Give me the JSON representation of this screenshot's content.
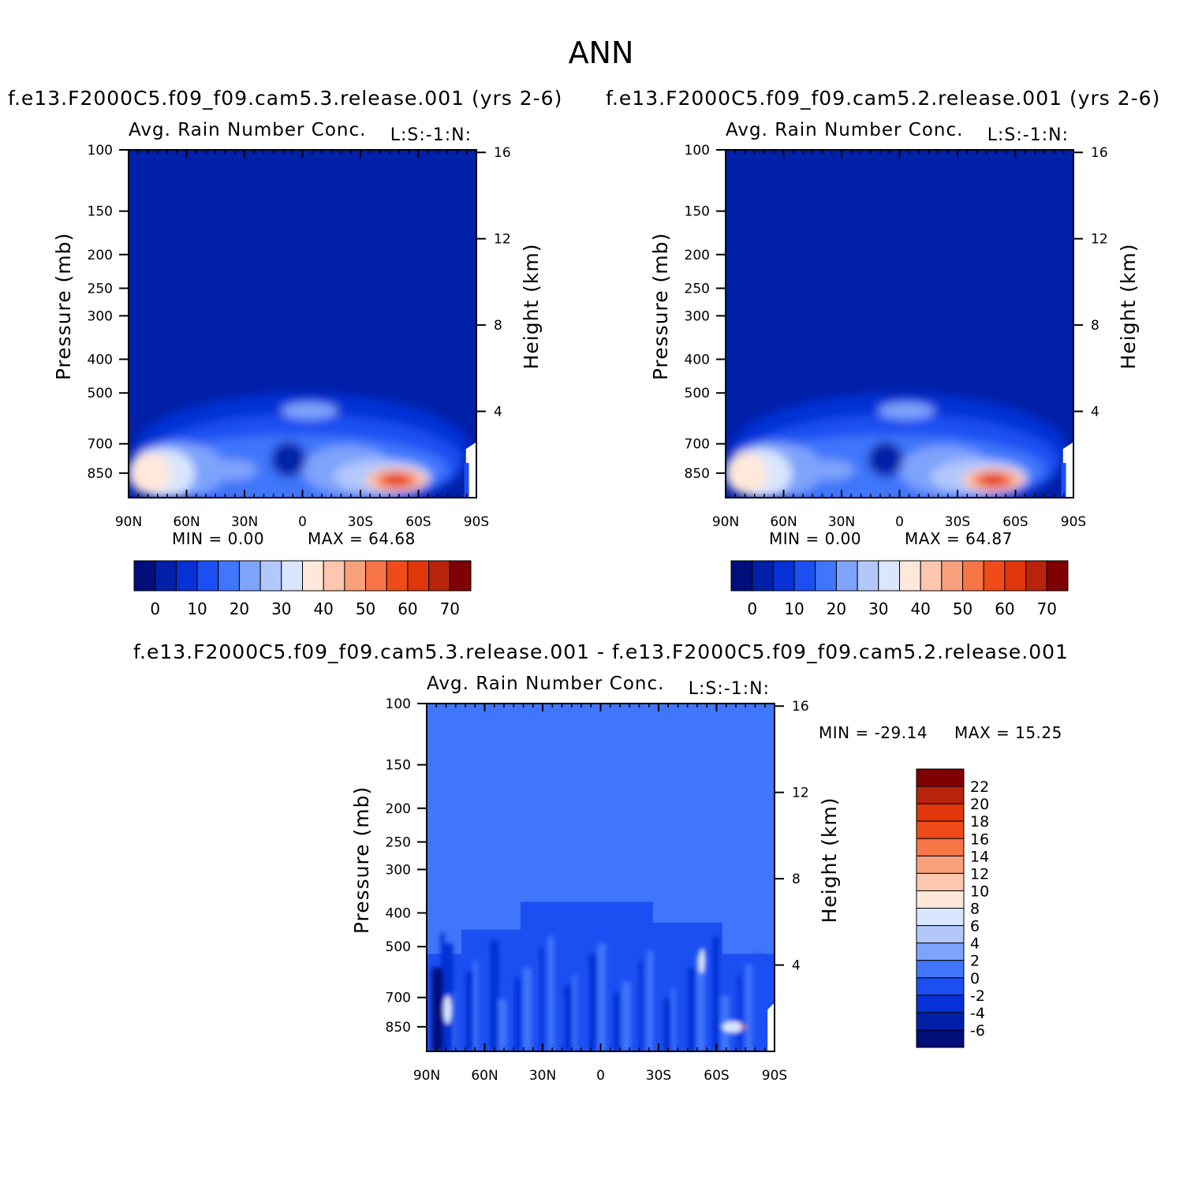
{
  "title": "ANN",
  "chart_data": [
    {
      "type": "heatmap",
      "case": "f.e13.F2000C5.f09_f09.cam5.3.release.001  (yrs 2-6)",
      "title": "Avg. Rain Number Conc.",
      "code": "L:S:-1:N:",
      "xlabel": "",
      "ylabel": "Pressure (mb)",
      "ylabel_right": "Height (km)",
      "x_ticks": [
        "90N",
        "60N",
        "30N",
        "0",
        "30S",
        "60S",
        "90S"
      ],
      "y_ticks": [
        "100",
        "150",
        "200",
        "250",
        "300",
        "400",
        "500",
        "700",
        "850"
      ],
      "y_ticks_right": [
        "16",
        "12",
        "8",
        "4"
      ],
      "ylim": [
        1000,
        100
      ],
      "min_text": "MIN =    0.00",
      "max_text": "MAX =   64.68",
      "min": 0.0,
      "max": 64.68,
      "colorbar_labels": [
        "0",
        "10",
        "20",
        "30",
        "40",
        "50",
        "60",
        "70"
      ]
    },
    {
      "type": "heatmap",
      "case": "f.e13.F2000C5.f09_f09.cam5.2.release.001  (yrs 2-6)",
      "title": "Avg. Rain Number Conc.",
      "code": "L:S:-1:N:",
      "xlabel": "",
      "ylabel": "Pressure (mb)",
      "ylabel_right": "Height (km)",
      "x_ticks": [
        "90N",
        "60N",
        "30N",
        "0",
        "30S",
        "60S",
        "90S"
      ],
      "y_ticks": [
        "100",
        "150",
        "200",
        "250",
        "300",
        "400",
        "500",
        "700",
        "850"
      ],
      "y_ticks_right": [
        "16",
        "12",
        "8",
        "4"
      ],
      "ylim": [
        1000,
        100
      ],
      "min_text": "MIN =    0.00",
      "max_text": "MAX =   64.87",
      "min": 0.0,
      "max": 64.87,
      "colorbar_labels": [
        "0",
        "10",
        "20",
        "30",
        "40",
        "50",
        "60",
        "70"
      ]
    },
    {
      "type": "heatmap",
      "case": "f.e13.F2000C5.f09_f09.cam5.3.release.001 - f.e13.F2000C5.f09_f09.cam5.2.release.001",
      "title": "Avg. Rain Number Conc.",
      "code": "L:S:-1:N:",
      "xlabel": "",
      "ylabel": "Pressure (mb)",
      "ylabel_right": "Height (km)",
      "x_ticks": [
        "90N",
        "60N",
        "30N",
        "0",
        "30S",
        "60S",
        "90S"
      ],
      "y_ticks": [
        "100",
        "150",
        "200",
        "250",
        "300",
        "400",
        "500",
        "700",
        "850"
      ],
      "y_ticks_right": [
        "16",
        "12",
        "8",
        "4"
      ],
      "ylim": [
        1000,
        100
      ],
      "min_text": "MIN = -29.14",
      "max_text": "MAX =   15.25",
      "min": -29.14,
      "max": 15.25,
      "colorbar_labels": [
        "22",
        "20",
        "18",
        "16",
        "14",
        "12",
        "10",
        "8",
        "6",
        "4",
        "2",
        "0",
        "-2",
        "-4",
        "-6"
      ]
    }
  ],
  "colors": {
    "abs_scale": [
      "#000e7a",
      "#0020a8",
      "#0531d6",
      "#1c4ff2",
      "#3f76fb",
      "#7ea3fb",
      "#b2c8fb",
      "#d9e6fd",
      "#ffe8da",
      "#fdc6ae",
      "#f9a07c",
      "#f77546",
      "#ef4c1a",
      "#e0360a",
      "#b7230b",
      "#7f0000"
    ],
    "diff_scale": [
      "#000e7a",
      "#0020a8",
      "#0531d6",
      "#1c4ff2",
      "#3f76fb",
      "#7ea3fb",
      "#b2c8fb",
      "#d9e6fd",
      "#ffe8da",
      "#fdc6ae",
      "#f9a07c",
      "#f77546",
      "#ef4c1a",
      "#e0360a",
      "#b7230b",
      "#7f0000"
    ],
    "abs_background": "#0020a8",
    "diff_background": "#3f76fb"
  }
}
